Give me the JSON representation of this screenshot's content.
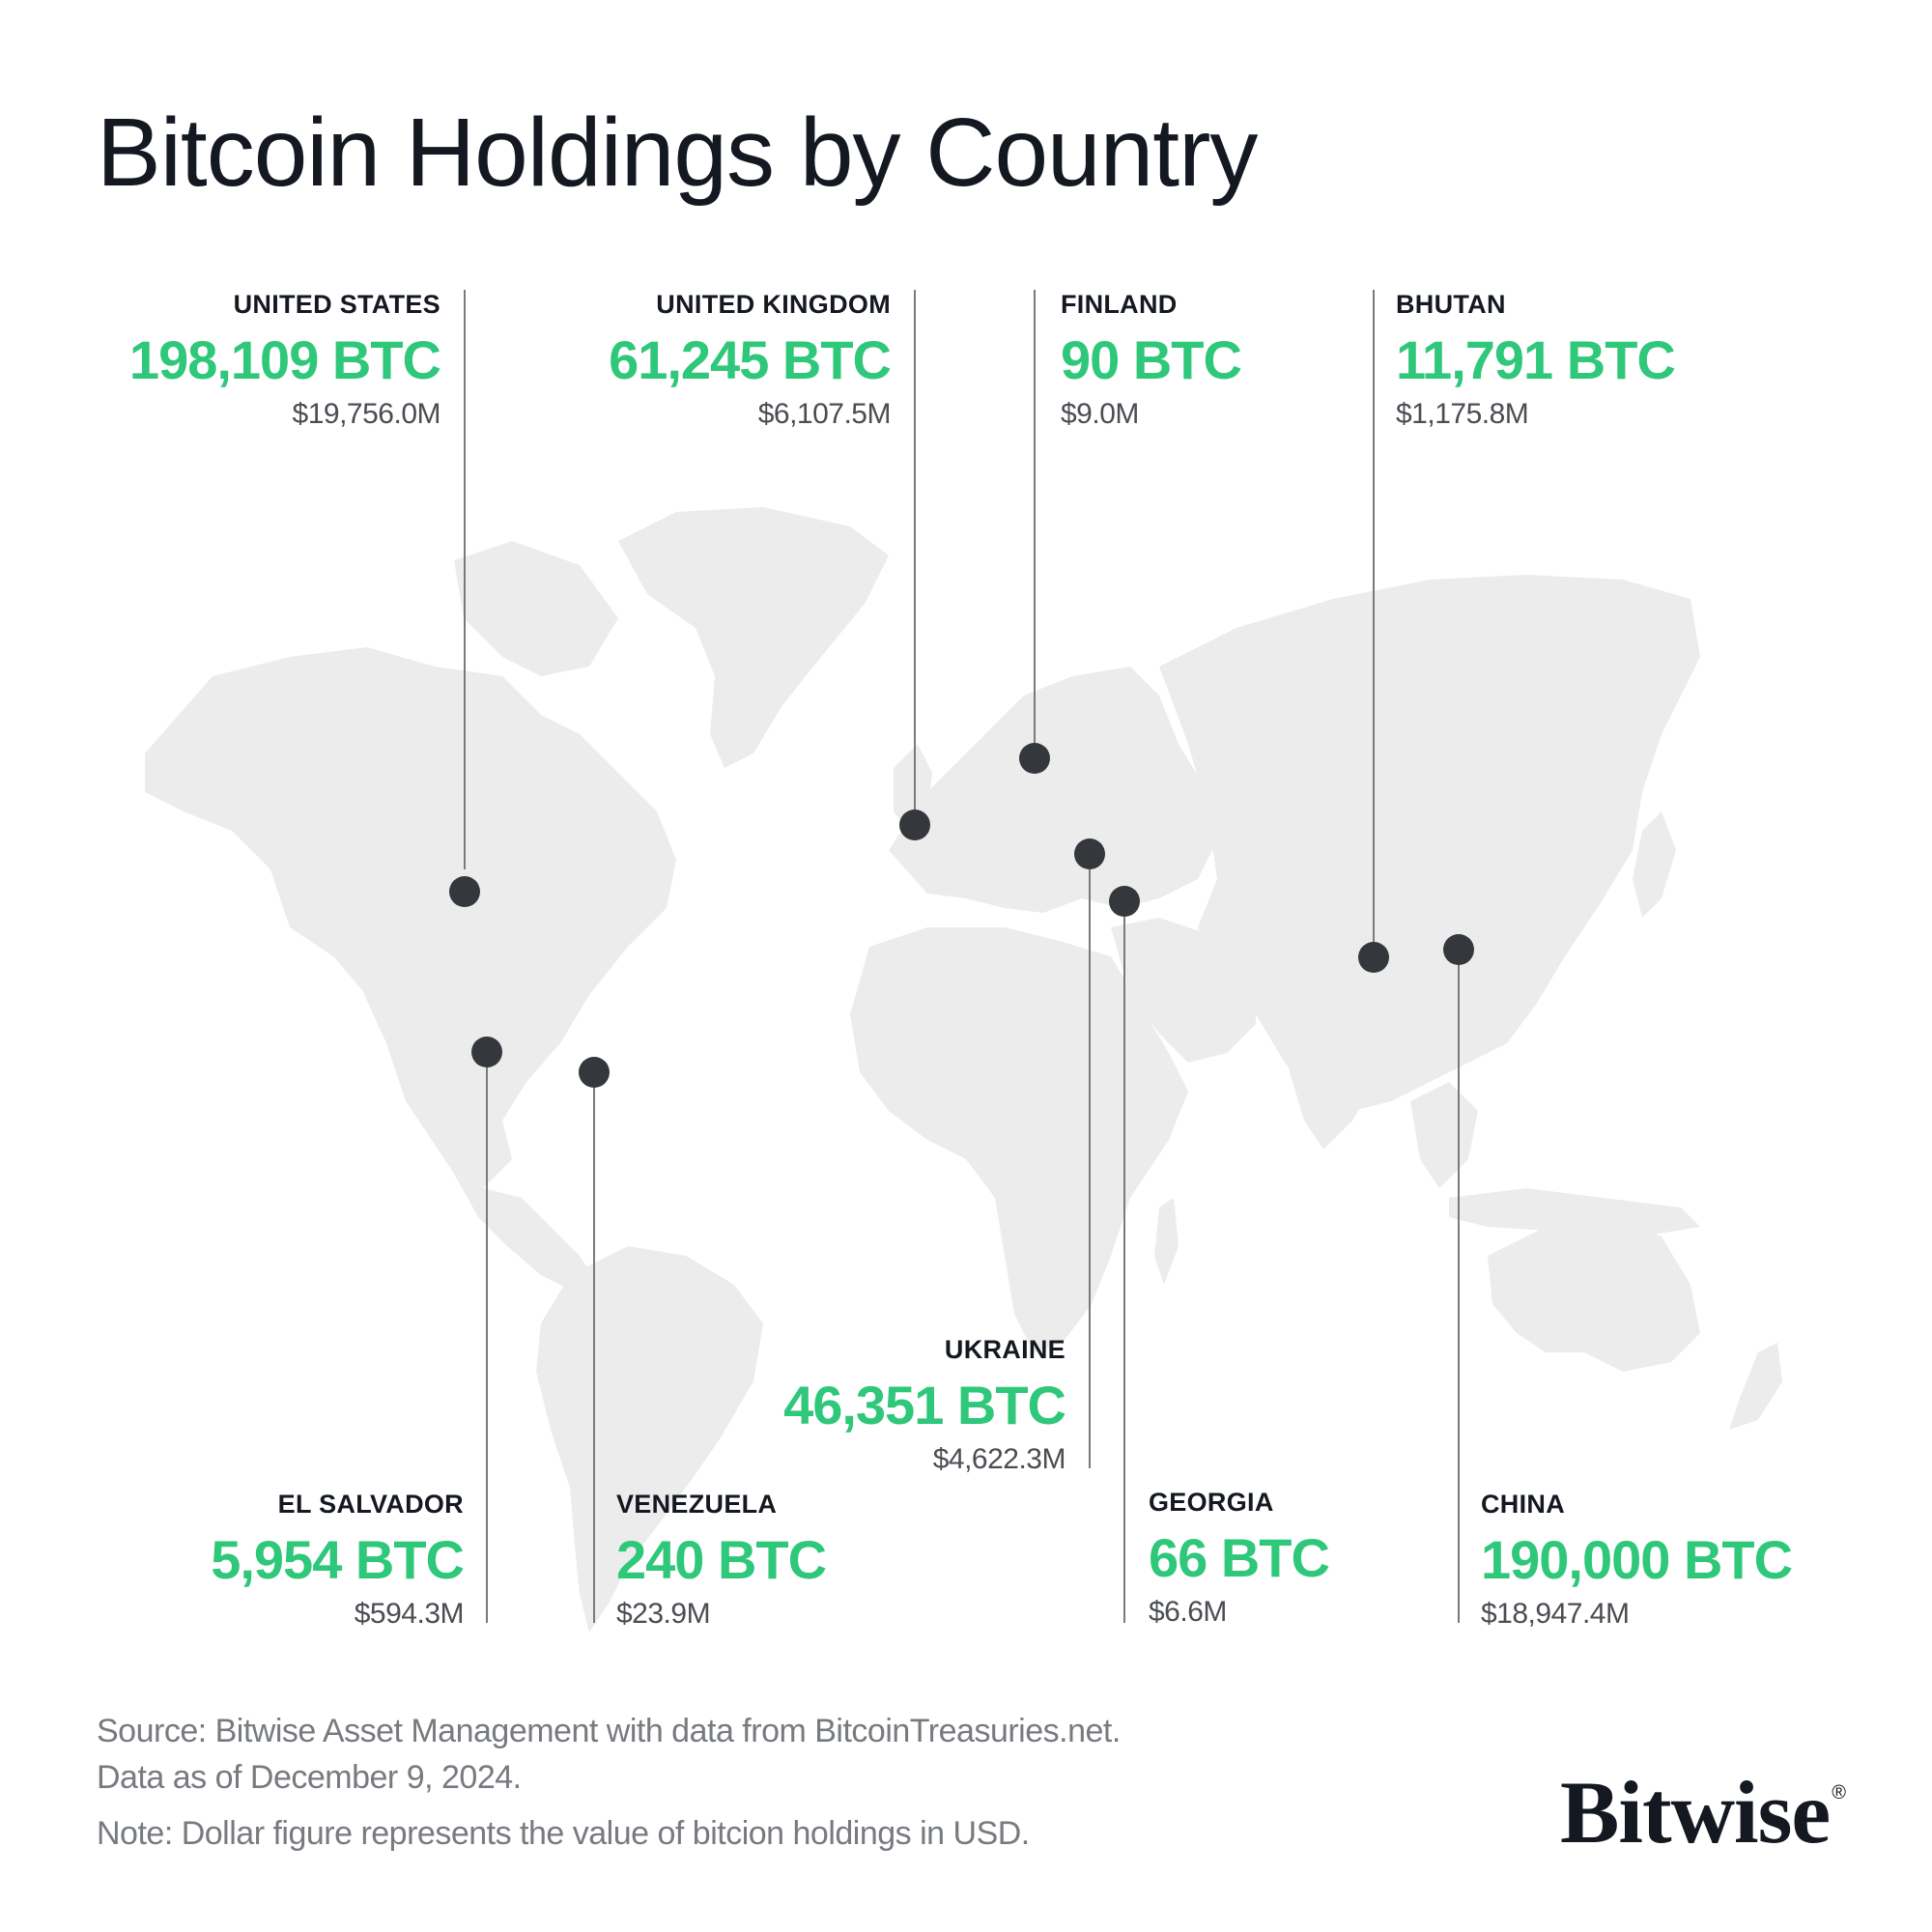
{
  "title": "Bitcoin Holdings by Country",
  "accent_color": "#2fc77a",
  "countries": [
    {
      "name": "UNITED STATES",
      "btc": "198,109 BTC",
      "usd": "$19,756.0M"
    },
    {
      "name": "UNITED KINGDOM",
      "btc": "61,245 BTC",
      "usd": "$6,107.5M"
    },
    {
      "name": "FINLAND",
      "btc": "90 BTC",
      "usd": "$9.0M"
    },
    {
      "name": "BHUTAN",
      "btc": "11,791 BTC",
      "usd": "$1,175.8M"
    },
    {
      "name": "UKRAINE",
      "btc": "46,351 BTC",
      "usd": "$4,622.3M"
    },
    {
      "name": "EL SALVADOR",
      "btc": "5,954 BTC",
      "usd": "$594.3M"
    },
    {
      "name": "VENEZUELA",
      "btc": "240 BTC",
      "usd": "$23.9M"
    },
    {
      "name": "GEORGIA",
      "btc": "66 BTC",
      "usd": "$6.6M"
    },
    {
      "name": "CHINA",
      "btc": "190,000 BTC",
      "usd": "$18,947.4M"
    }
  ],
  "footer": {
    "source": "Source: Bitwise Asset Management with data from BitcoinTreasuries.net.",
    "date": "Data as of December 9, 2024.",
    "note": "Note: Dollar figure represents the value of bitcion holdings in USD."
  },
  "logo": {
    "text": "Bitwise",
    "mark": "®"
  }
}
